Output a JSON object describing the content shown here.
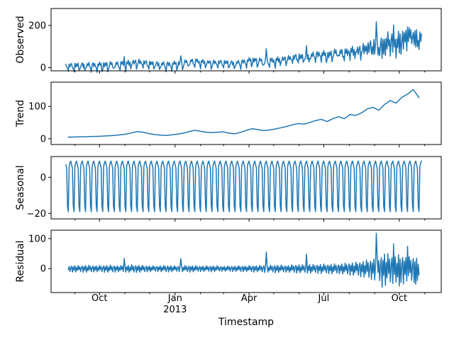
{
  "background": "#ffffff",
  "chart_data": {
    "type": "line",
    "title": "",
    "xlabel": "Timestamp",
    "line_color": "#1f77b4",
    "axis_color": "#000000",
    "n_days": 434,
    "xlim_days": [
      -18,
      457
    ],
    "x_major_ticks": [
      {
        "label": "Oct",
        "day": 41
      },
      {
        "label": "Jan",
        "day": 133,
        "sublabel": "2013"
      },
      {
        "label": "Apr",
        "day": 223
      },
      {
        "label": "Jul",
        "day": 314
      },
      {
        "label": "Oct",
        "day": 406
      }
    ],
    "x_minor_tick_days": [
      11,
      41,
      72,
      102,
      133,
      164,
      192,
      223,
      253,
      284,
      314,
      345,
      376,
      406,
      437
    ],
    "panels": [
      {
        "type": "line",
        "series": "observed",
        "ylabel": "Observed",
        "yticks": [
          0,
          200
        ],
        "ytick_labels": [
          "0",
          "200"
        ],
        "ylim": [
          -15,
          280
        ]
      },
      {
        "type": "line",
        "series": "trend",
        "ylabel": "Trend",
        "yticks": [
          0,
          100
        ],
        "ytick_labels": [
          "0",
          "100"
        ],
        "ylim": [
          -18,
          175
        ]
      },
      {
        "type": "line",
        "series": "seasonal",
        "ylabel": "Seasonal",
        "yticks": [
          -20,
          0
        ],
        "ytick_labels": [
          "−20",
          "0"
        ],
        "ylim": [
          -23,
          11.5
        ]
      },
      {
        "type": "line",
        "series": "residual",
        "ylabel": "Residual",
        "yticks": [
          0,
          100
        ],
        "ytick_labels": [
          "0",
          "100"
        ],
        "ylim": [
          -80,
          128
        ]
      }
    ],
    "series_day_ranges": {
      "observed": [
        0,
        433
      ],
      "trend": [
        3,
        430
      ],
      "seasonal": [
        0,
        433
      ],
      "residual": [
        3,
        430
      ]
    },
    "decomposition": {
      "anchor_day_start": 3,
      "anchor_step_days": 7,
      "trend_weekly": [
        5,
        5,
        6,
        6,
        7,
        7,
        8,
        9,
        10,
        12,
        14,
        18,
        22,
        20,
        16,
        13,
        11,
        10,
        12,
        14,
        17,
        22,
        26,
        23,
        20,
        19,
        20,
        21,
        17,
        15,
        20,
        26,
        31,
        28,
        25,
        27,
        30,
        34,
        38,
        43,
        47,
        45,
        50,
        56,
        60,
        53,
        62,
        68,
        62,
        75,
        72,
        80,
        92,
        97,
        88,
        106,
        118,
        110,
        128,
        138,
        152,
        127
      ],
      "seasonal_week": [
        6,
        8,
        9,
        7,
        5,
        -16,
        -19
      ],
      "seasonal_week_offset": 3,
      "residual_envelope_weekly": [
        11,
        12,
        11,
        13,
        12,
        11,
        12,
        13,
        12,
        11,
        12,
        14,
        13,
        12,
        11,
        10,
        11,
        12,
        11,
        10,
        11,
        12,
        11,
        10,
        10,
        11,
        10,
        9,
        10,
        10,
        11,
        10,
        12,
        11,
        13,
        12,
        14,
        13,
        12,
        14,
        15,
        14,
        16,
        15,
        17,
        16,
        18,
        17,
        20,
        22,
        24,
        28,
        32,
        38,
        45,
        60,
        52,
        48,
        55,
        42,
        48,
        40
      ],
      "residual_base_pattern": [
        0.35,
        -0.55,
        0.9,
        -0.3,
        0.6,
        -0.85,
        0.2,
        0.7,
        -1.0,
        0.5,
        -0.4,
        0.8,
        -0.95
      ],
      "residual_spikes": {
        "71": 34,
        "140": 33,
        "244": 55,
        "293": 48,
        "378": 118,
        "385": -62,
        "399": 82,
        "406": -58,
        "416": 74,
        "426": -52
      }
    }
  }
}
